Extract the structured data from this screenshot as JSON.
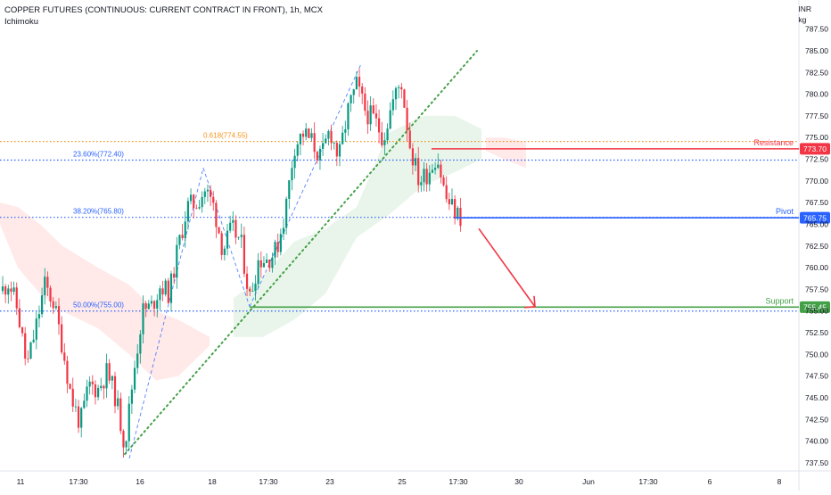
{
  "header": {
    "title": "COPPER FUTURES (CONTINUOUS: CURRENT CONTRACT IN FRONT), 1h, MCX",
    "indicator": "Ichimoku"
  },
  "axis_unit": {
    "line1": "INR",
    "line2": "kg"
  },
  "chart_data": {
    "type": "line",
    "chart_style": "candlestick",
    "title": "COPPER FUTURES (CONTINUOUS: CURRENT CONTRACT IN FRONT), 1h, MCX",
    "ylim": [
      736.6,
      788.6
    ],
    "y_ticks": [
      "787.50",
      "785.00",
      "782.50",
      "780.00",
      "777.50",
      "775.00",
      "772.50",
      "770.00",
      "767.50",
      "765.00",
      "762.50",
      "760.00",
      "757.50",
      "755.00",
      "752.50",
      "750.00",
      "747.50",
      "745.00",
      "742.50",
      "740.00",
      "737.50"
    ],
    "x_ticks": [
      "11",
      "17:30",
      "16",
      "18",
      "17:30",
      "23",
      "25",
      "17:30",
      "30",
      "Jun",
      "17:30",
      "6",
      "8"
    ],
    "price_path": [
      [
        0,
        757.0
      ],
      [
        10,
        758.5
      ],
      [
        20,
        755.0
      ],
      [
        30,
        748.5
      ],
      [
        40,
        753.0
      ],
      [
        50,
        758.0
      ],
      [
        60,
        756.0
      ],
      [
        70,
        751.0
      ],
      [
        80,
        745.0
      ],
      [
        90,
        742.0
      ],
      [
        100,
        746.5
      ],
      [
        110,
        746.0
      ],
      [
        120,
        748.0
      ],
      [
        130,
        745.0
      ],
      [
        140,
        739.5
      ],
      [
        150,
        748.0
      ],
      [
        160,
        755.0
      ],
      [
        170,
        755.5
      ],
      [
        180,
        758.0
      ],
      [
        190,
        757.0
      ],
      [
        200,
        762.5
      ],
      [
        210,
        767.0
      ],
      [
        220,
        767.5
      ],
      [
        230,
        769.0
      ],
      [
        240,
        767.0
      ],
      [
        250,
        762.0
      ],
      [
        260,
        764.5
      ],
      [
        270,
        763.0
      ],
      [
        280,
        756.5
      ],
      [
        290,
        761.0
      ],
      [
        300,
        761.0
      ],
      [
        310,
        762.0
      ],
      [
        320,
        766.5
      ],
      [
        330,
        774.0
      ],
      [
        340,
        775.5
      ],
      [
        350,
        774.5
      ],
      [
        360,
        772.5
      ],
      [
        370,
        776.0
      ],
      [
        380,
        772.5
      ],
      [
        390,
        778.0
      ],
      [
        400,
        781.0
      ],
      [
        410,
        778.0
      ],
      [
        420,
        777.0
      ],
      [
        430,
        775.0
      ],
      [
        440,
        779.0
      ],
      [
        450,
        781.5
      ],
      [
        460,
        774.0
      ],
      [
        470,
        770.0
      ],
      [
        480,
        771.0
      ],
      [
        490,
        773.0
      ],
      [
        500,
        768.0
      ],
      [
        510,
        766.5
      ],
      [
        517,
        765.75
      ]
    ],
    "levels": [
      {
        "name": "Resistance",
        "value": 773.7,
        "label": "773.70",
        "color": "#f23645"
      },
      {
        "name": "Pivot",
        "value": 765.75,
        "label": "765.75",
        "color": "#2962ff"
      },
      {
        "name": "Support",
        "value": 755.45,
        "label": "755.45",
        "color": "#43a047"
      }
    ],
    "fib_levels": [
      {
        "label": "0.618(774.55)",
        "value": 774.55,
        "color": "#f7931a"
      },
      {
        "label": "23.60%(772.40)",
        "value": 772.4,
        "color": "#2962ff"
      },
      {
        "label": "38.20%(765.80)",
        "value": 765.8,
        "color": "#2962ff"
      },
      {
        "label": "50.00%(755.00)",
        "value": 755.0,
        "color": "#2962ff"
      }
    ],
    "trendline": {
      "from": [
        140,
        738.5
      ],
      "to": [
        535,
        785.0
      ],
      "color": "#43a047",
      "style": "dotted"
    },
    "fib_swing": [
      {
        "from": [
          145,
          738.0
        ],
        "to": [
          228,
          771.5
        ]
      },
      {
        "from": [
          228,
          771.5
        ],
        "to": [
          280,
          755.5
        ]
      },
      {
        "from": [
          280,
          755.5
        ],
        "to": [
          405,
          783.5
        ]
      }
    ],
    "forecast_arrow": {
      "from": [
        537,
        764.5
      ],
      "to": [
        600,
        755.5
      ],
      "color": "#f23645"
    },
    "ichimoku_cloud": {
      "bearish": [
        [
          0,
          767.5,
          765.0
        ],
        [
          20,
          767.0,
          760.0
        ],
        [
          45,
          765.0,
          757.0
        ],
        [
          70,
          762.5,
          755.0
        ],
        [
          110,
          760.0,
          753.0
        ],
        [
          145,
          758.0,
          750.0
        ],
        [
          175,
          755.0,
          747.0
        ],
        [
          200,
          754.0,
          747.5
        ],
        [
          235,
          752.0,
          751.0
        ]
      ],
      "bullish": [
        [
          262,
          756.5,
          752.0
        ],
        [
          295,
          759.0,
          752.0
        ],
        [
          330,
          763.0,
          754.0
        ],
        [
          365,
          764.5,
          757.0
        ],
        [
          400,
          767.0,
          763.5
        ],
        [
          435,
          775.5,
          766.0
        ],
        [
          475,
          777.5,
          769.5
        ],
        [
          510,
          777.5,
          771.0
        ],
        [
          540,
          776.0,
          772.5
        ]
      ],
      "bearish_late": [
        [
          545,
          775.0,
          773.5
        ],
        [
          565,
          775.0,
          772.5
        ],
        [
          590,
          774.5,
          771.5
        ]
      ]
    }
  }
}
